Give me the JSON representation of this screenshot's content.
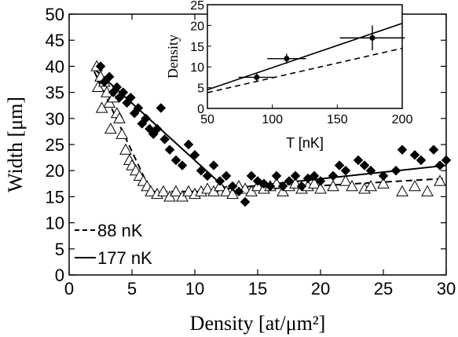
{
  "chart_data": [
    {
      "type": "scatter",
      "xlabel": "Density [at/μm²]",
      "ylabel": "Width [μm]",
      "xlim": [
        0,
        30
      ],
      "ylim": [
        0,
        50
      ],
      "xticks": [
        "0",
        "5",
        "10",
        "15",
        "20",
        "25",
        "30"
      ],
      "yticks": [
        "0",
        "5",
        "10",
        "15",
        "20",
        "25",
        "30",
        "35",
        "40",
        "45",
        "50"
      ],
      "legend": {
        "placement": "bottom-left",
        "entries": [
          {
            "label": "88 nK",
            "style": "dashed"
          },
          {
            "label": "177 nK",
            "style": "solid"
          }
        ]
      },
      "series": [
        {
          "name": "88 nK",
          "marker": "open-triangle",
          "points": [
            [
              2.2,
              40
            ],
            [
              2.5,
              38
            ],
            [
              2.3,
              36
            ],
            [
              2.8,
              37
            ],
            [
              3.0,
              35
            ],
            [
              3.2,
              33
            ],
            [
              2.6,
              32
            ],
            [
              3.5,
              34
            ],
            [
              3.8,
              31
            ],
            [
              4.0,
              30
            ],
            [
              3.3,
              28
            ],
            [
              4.2,
              27
            ],
            [
              4.5,
              24
            ],
            [
              4.8,
              22
            ],
            [
              5.0,
              21
            ],
            [
              5.3,
              20
            ],
            [
              5.6,
              19
            ],
            [
              5.9,
              18
            ],
            [
              6.2,
              17
            ],
            [
              6.5,
              16
            ],
            [
              7.0,
              15.5
            ],
            [
              7.5,
              16
            ],
            [
              8.0,
              15
            ],
            [
              8.5,
              16
            ],
            [
              9.0,
              15
            ],
            [
              9.5,
              16
            ],
            [
              10.0,
              15.5
            ],
            [
              10.5,
              16
            ],
            [
              11.0,
              16.5
            ],
            [
              11.5,
              16
            ],
            [
              12.0,
              17
            ],
            [
              12.5,
              16
            ],
            [
              13.0,
              15.5
            ],
            [
              13.5,
              17
            ],
            [
              14.0,
              16.5
            ],
            [
              14.5,
              16
            ],
            [
              15.0,
              17
            ],
            [
              15.5,
              16.5
            ],
            [
              16.0,
              17
            ],
            [
              16.5,
              17.5
            ],
            [
              17.0,
              16
            ],
            [
              17.5,
              17
            ],
            [
              18.0,
              17.5
            ],
            [
              18.5,
              16.5
            ],
            [
              19.0,
              17
            ],
            [
              19.5,
              17.5
            ],
            [
              20.0,
              16.5
            ],
            [
              21.0,
              17
            ],
            [
              22.0,
              18
            ],
            [
              22.5,
              17
            ],
            [
              23.5,
              16.5
            ],
            [
              24.0,
              17
            ],
            [
              25.0,
              17.5
            ],
            [
              26.5,
              16
            ],
            [
              27.5,
              17
            ],
            [
              28.5,
              16
            ],
            [
              29.5,
              18
            ]
          ]
        },
        {
          "name": "177 nK",
          "marker": "filled-diamond",
          "points": [
            [
              2.5,
              40
            ],
            [
              2.8,
              37
            ],
            [
              3.2,
              38
            ],
            [
              3.5,
              35
            ],
            [
              3.8,
              36
            ],
            [
              4.0,
              34
            ],
            [
              4.3,
              35
            ],
            [
              4.6,
              33
            ],
            [
              4.9,
              34
            ],
            [
              5.2,
              31
            ],
            [
              5.5,
              32
            ],
            [
              5.8,
              29
            ],
            [
              6.1,
              30
            ],
            [
              6.4,
              28
            ],
            [
              6.7,
              27
            ],
            [
              7.0,
              28
            ],
            [
              7.3,
              32
            ],
            [
              7.6,
              26
            ],
            [
              8.0,
              24
            ],
            [
              8.5,
              22
            ],
            [
              9.0,
              21
            ],
            [
              9.5,
              25
            ],
            [
              10.0,
              23
            ],
            [
              10.5,
              20
            ],
            [
              11.0,
              19
            ],
            [
              11.5,
              21
            ],
            [
              12.0,
              18
            ],
            [
              12.5,
              19
            ],
            [
              13.0,
              17
            ],
            [
              13.5,
              16
            ],
            [
              14.0,
              14
            ],
            [
              14.5,
              19
            ],
            [
              15.0,
              18
            ],
            [
              15.5,
              17.5
            ],
            [
              16.0,
              17
            ],
            [
              16.5,
              19
            ],
            [
              17.0,
              17
            ],
            [
              17.5,
              18
            ],
            [
              18.0,
              19
            ],
            [
              18.5,
              17
            ],
            [
              19.0,
              18.5
            ],
            [
              19.5,
              19
            ],
            [
              20.0,
              18
            ],
            [
              21.0,
              19
            ],
            [
              21.5,
              21
            ],
            [
              22.0,
              20
            ],
            [
              23.0,
              22
            ],
            [
              23.5,
              21
            ],
            [
              24.0,
              20
            ],
            [
              25.0,
              19
            ],
            [
              26.0,
              20
            ],
            [
              26.5,
              24
            ],
            [
              27.5,
              23
            ],
            [
              28.0,
              22
            ],
            [
              29.0,
              24
            ],
            [
              29.5,
              21
            ],
            [
              30.0,
              22
            ]
          ]
        }
      ],
      "fit_lines": [
        {
          "name": "88 nK",
          "style": "dashed",
          "points": [
            [
              2,
              39
            ],
            [
              6.5,
              16
            ],
            [
              12,
              16
            ],
            [
              30,
              18.5
            ]
          ]
        },
        {
          "name": "177 nK",
          "style": "solid",
          "points": [
            [
              2,
              39.5
            ],
            [
              12.5,
              16.5
            ],
            [
              30,
              21
            ]
          ]
        }
      ]
    },
    {
      "type": "line",
      "xlabel": "T [nK]",
      "ylabel": "Density",
      "xlim": [
        50,
        200
      ],
      "ylim": [
        0,
        25
      ],
      "xticks": [
        "50",
        "100",
        "150",
        "200"
      ],
      "yticks": [
        "0",
        "5",
        "10",
        "15",
        "20",
        "25"
      ],
      "points": [
        {
          "x": 88,
          "y": 7.5,
          "xerr": 14,
          "yerr": 1
        },
        {
          "x": 111,
          "y": 12,
          "xerr": 15,
          "yerr": 1.2
        },
        {
          "x": 177,
          "y": 17,
          "xerr": 25,
          "yerr": 3
        }
      ],
      "lines": [
        {
          "style": "solid",
          "points": [
            [
              50,
              4.5
            ],
            [
              200,
              20.5
            ]
          ]
        },
        {
          "style": "dashed",
          "points": [
            [
              50,
              3.8
            ],
            [
              200,
              14.5
            ]
          ]
        }
      ]
    }
  ]
}
